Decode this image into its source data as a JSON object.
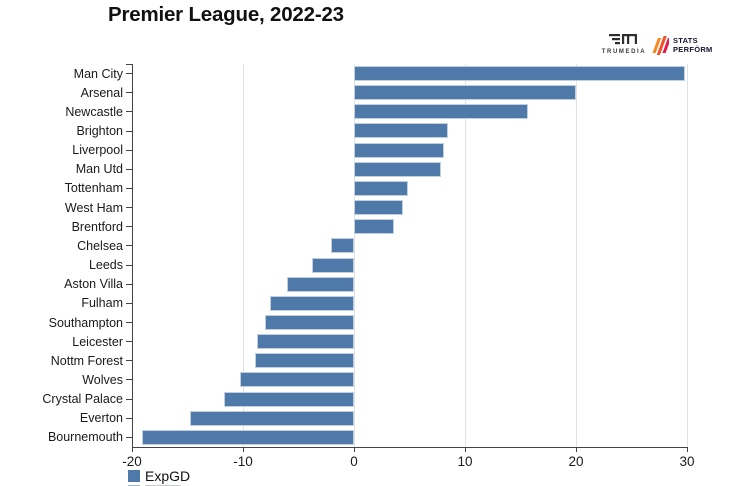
{
  "header": {
    "title": "Premier League, 2022-23",
    "logos": {
      "trumedia_word": "TRUMEDIA",
      "trumedia_mark": "TM",
      "statsperform_line1": "STATS",
      "statsperform_line2": "PERFÖRM"
    }
  },
  "legend": {
    "label": "ExpGD"
  },
  "colors": {
    "bar": "#4e79a8",
    "axis": "#444444",
    "grid": "#e2e2e2",
    "title": "#111111",
    "stripe1": "#f6891f",
    "stripe2": "#f05328",
    "stripe3": "#e9174b"
  },
  "chart_data": {
    "type": "bar",
    "orientation": "horizontal",
    "title": "Premier League, 2022-23",
    "legend": [
      "ExpGD"
    ],
    "legend_position": "bottom-left",
    "xlabel": "",
    "ylabel": "",
    "xlim": [
      -20,
      30
    ],
    "xticks": [
      -20,
      -10,
      0,
      10,
      20,
      30
    ],
    "grid": true,
    "categories": [
      "Man City",
      "Arsenal",
      "Newcastle",
      "Brighton",
      "Liverpool",
      "Man Utd",
      "Tottenham",
      "West Ham",
      "Brentford",
      "Chelsea",
      "Leeds",
      "Aston Villa",
      "Fulham",
      "Southampton",
      "Leicester",
      "Nottm Forest",
      "Wolves",
      "Crystal Palace",
      "Everton",
      "Bournemouth"
    ],
    "values": [
      29.8,
      20.0,
      15.7,
      8.5,
      8.1,
      7.8,
      4.9,
      4.4,
      3.6,
      -2.1,
      -3.8,
      -6.0,
      -7.6,
      -8.0,
      -8.7,
      -8.9,
      -10.3,
      -11.7,
      -14.8,
      -19.1
    ]
  }
}
